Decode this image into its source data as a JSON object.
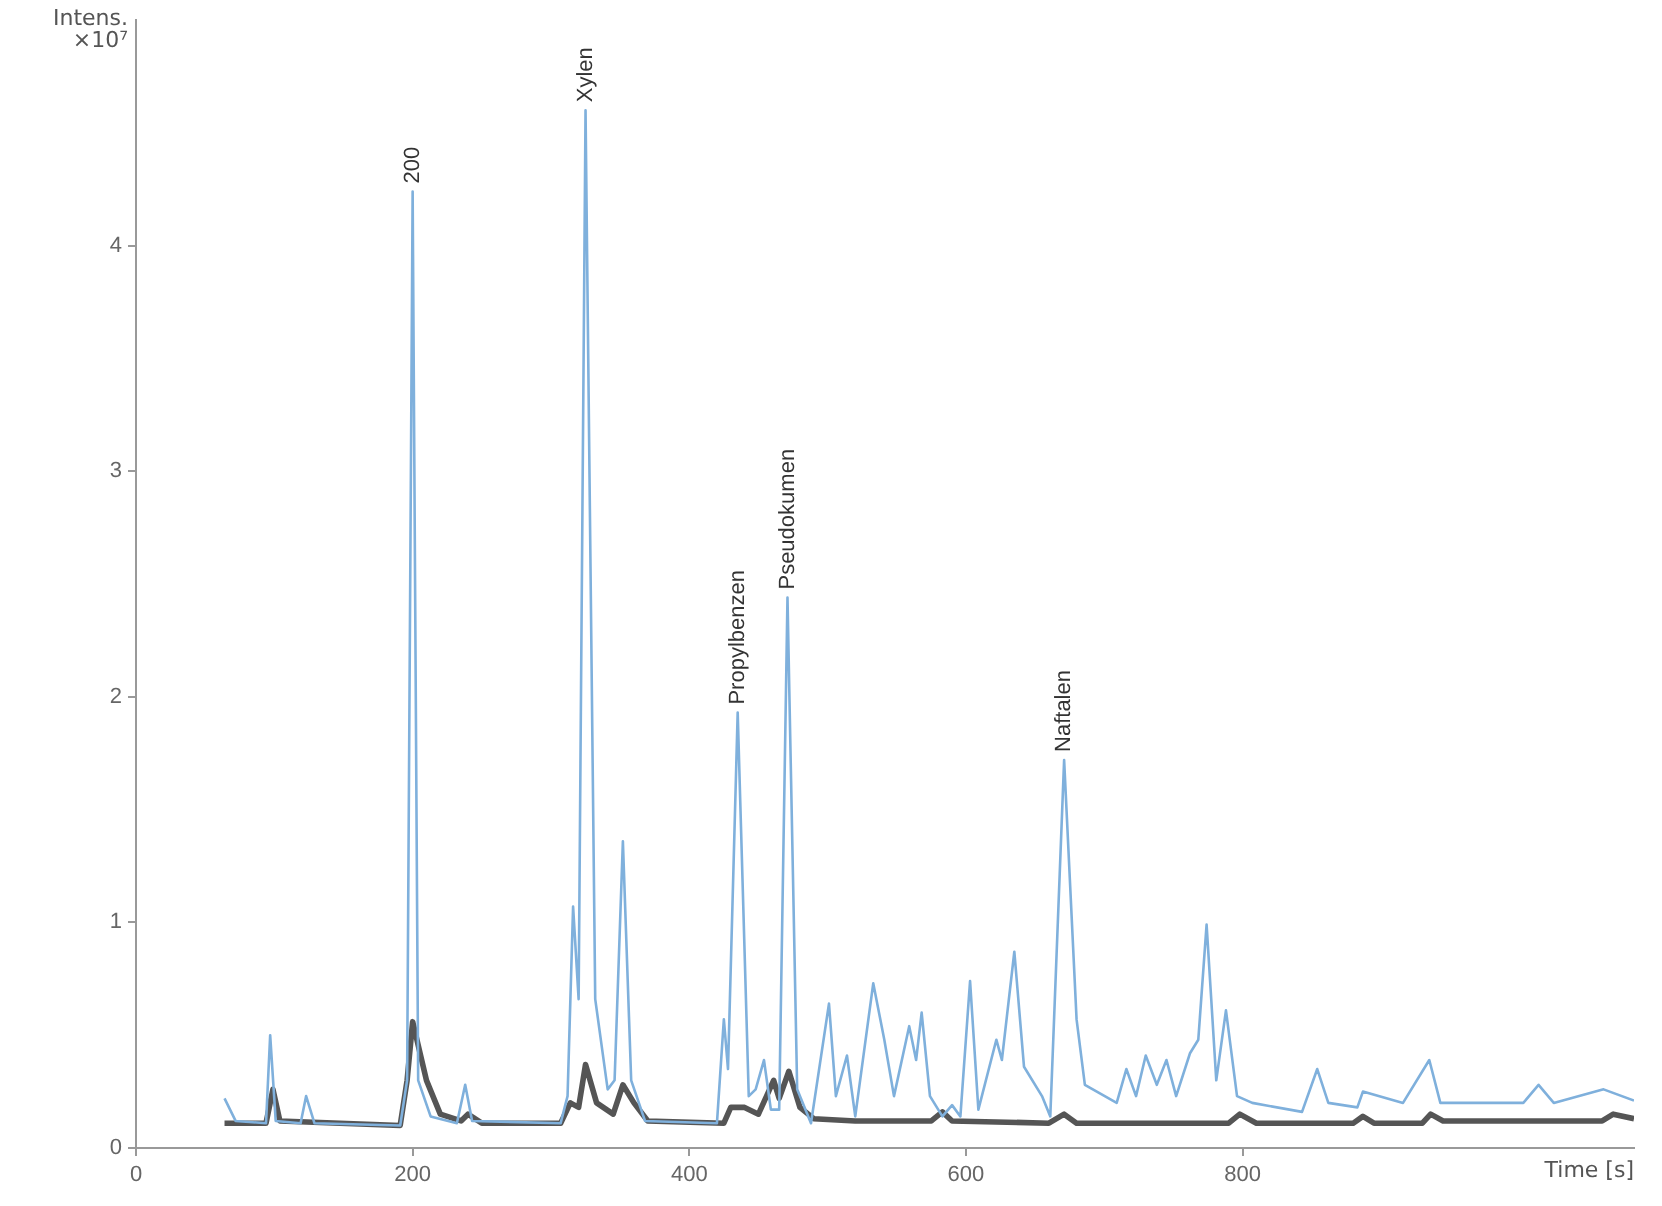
{
  "chart_data": {
    "type": "line",
    "xlabel": "Time [s]",
    "ylabel": "Intens. ×10⁷",
    "xlim": [
      0,
      1083
    ],
    "xticks": [
      0,
      200,
      400,
      600,
      800
    ],
    "ylim": [
      0,
      5
    ],
    "yticks": [
      0,
      1,
      2,
      3,
      4
    ],
    "grid": false,
    "marker": "none",
    "line_style": "solid",
    "series": [
      {
        "color": "#7fb0dc",
        "x": [
          64,
          72,
          94,
          97,
          101,
          119,
          123,
          129,
          191,
          196,
          200,
          204,
          213,
          232,
          238,
          243,
          307,
          312,
          316,
          320,
          325,
          332,
          341,
          346,
          352,
          358,
          368,
          420,
          425,
          428,
          435,
          443,
          448,
          454,
          459,
          465,
          471,
          478,
          488,
          501,
          506,
          514,
          520,
          533,
          541,
          548,
          559,
          564,
          568,
          574,
          583,
          590,
          596,
          603,
          609,
          622,
          626,
          635,
          642,
          655,
          661,
          671,
          680,
          686,
          709,
          716,
          723,
          730,
          738,
          745,
          752,
          762,
          768,
          774,
          781,
          788,
          796,
          807,
          843,
          854,
          862,
          883,
          887,
          916,
          935,
          943,
          1003,
          1014,
          1025,
          1061,
          1083
        ],
        "values": [
          0.22,
          0.12,
          0.11,
          0.5,
          0.12,
          0.11,
          0.23,
          0.11,
          0.1,
          0.3,
          4.24,
          0.3,
          0.14,
          0.11,
          0.28,
          0.12,
          0.11,
          0.23,
          1.07,
          0.66,
          4.6,
          0.66,
          0.26,
          0.3,
          1.36,
          0.3,
          0.12,
          0.11,
          0.57,
          0.35,
          1.93,
          0.23,
          0.26,
          0.39,
          0.17,
          0.17,
          2.44,
          0.26,
          0.11,
          0.64,
          0.23,
          0.41,
          0.14,
          0.73,
          0.48,
          0.23,
          0.54,
          0.39,
          0.6,
          0.23,
          0.14,
          0.19,
          0.14,
          0.74,
          0.17,
          0.48,
          0.39,
          0.87,
          0.36,
          0.23,
          0.14,
          1.72,
          0.57,
          0.28,
          0.2,
          0.35,
          0.23,
          0.41,
          0.28,
          0.39,
          0.23,
          0.42,
          0.48,
          0.99,
          0.3,
          0.61,
          0.23,
          0.2,
          0.16,
          0.35,
          0.2,
          0.18,
          0.25,
          0.2,
          0.39,
          0.2,
          0.2,
          0.28,
          0.2,
          0.26,
          0.21
        ]
      },
      {
        "color": "#555555",
        "x": [
          64,
          94,
          99,
          104,
          191,
          196,
          200,
          210,
          220,
          235,
          240,
          250,
          307,
          314,
          320,
          325,
          333,
          345,
          352,
          360,
          370,
          425,
          430,
          440,
          450,
          461,
          465,
          472,
          480,
          490,
          520,
          575,
          583,
          590,
          660,
          671,
          680,
          790,
          798,
          810,
          880,
          887,
          895,
          930,
          936,
          945,
          1060,
          1068,
          1083
        ],
        "values": [
          0.11,
          0.11,
          0.26,
          0.12,
          0.1,
          0.3,
          0.56,
          0.3,
          0.15,
          0.12,
          0.15,
          0.11,
          0.11,
          0.2,
          0.18,
          0.37,
          0.2,
          0.15,
          0.28,
          0.2,
          0.12,
          0.11,
          0.18,
          0.18,
          0.15,
          0.3,
          0.22,
          0.34,
          0.18,
          0.13,
          0.12,
          0.12,
          0.16,
          0.12,
          0.11,
          0.15,
          0.11,
          0.11,
          0.15,
          0.11,
          0.11,
          0.14,
          0.11,
          0.11,
          0.15,
          0.12,
          0.12,
          0.15,
          0.13
        ]
      }
    ],
    "annotations": [
      {
        "text": "200",
        "x": 200,
        "y": 4.24
      },
      {
        "text": "Xylen",
        "x": 325,
        "y": 4.6
      },
      {
        "text": "Propylbenzen",
        "x": 435,
        "y": 1.93
      },
      {
        "text": "Pseudokumen",
        "x": 471,
        "y": 2.44
      },
      {
        "text": "Naftalen",
        "x": 671,
        "y": 1.72
      }
    ]
  }
}
